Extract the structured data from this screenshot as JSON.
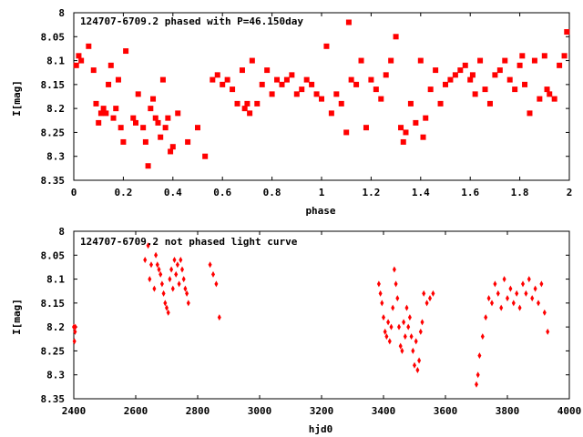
{
  "chart_data": [
    {
      "type": "scatter",
      "title": "124707-6709.2 phased with P=46.150day",
      "xlabel": "phase",
      "ylabel": "I[mag]",
      "xlim": [
        0,
        2
      ],
      "ylim": [
        8.35,
        8
      ],
      "y_inverted": true,
      "xticks": [
        "0",
        "0.2",
        "0.4",
        "0.6",
        "0.8",
        "1",
        "1.2",
        "1.4",
        "1.6",
        "1.8",
        "2"
      ],
      "yticks": [
        "8",
        "8.05",
        "8.1",
        "8.15",
        "8.2",
        "8.25",
        "8.3",
        "8.35"
      ],
      "marker": "filled-square",
      "color": "#ff0000",
      "series": [
        {
          "x": [
            0.01,
            0.02,
            0.03,
            0.06,
            0.08,
            0.09,
            0.1,
            0.11,
            0.12,
            0.13,
            0.14,
            0.15,
            0.16,
            0.17,
            0.18,
            0.19,
            0.2,
            0.21,
            0.24,
            0.25,
            0.26,
            0.28,
            0.29,
            0.3,
            0.31,
            0.32,
            0.33,
            0.34,
            0.35,
            0.36,
            0.37,
            0.38,
            0.39,
            0.4,
            0.42,
            0.46,
            0.5,
            0.53,
            0.56,
            0.58,
            0.6,
            0.62,
            0.64,
            0.66,
            0.68,
            0.69,
            0.7,
            0.71,
            0.72,
            0.74,
            0.76,
            0.78,
            0.8,
            0.82,
            0.84,
            0.86,
            0.88,
            0.9,
            0.92,
            0.94,
            0.96,
            0.98,
            1.0,
            1.02,
            1.04,
            1.06,
            1.08,
            1.1,
            1.11,
            1.12,
            1.14,
            1.16,
            1.18,
            1.2,
            1.22,
            1.24,
            1.26,
            1.28,
            1.3,
            1.32,
            1.33,
            1.34,
            1.36,
            1.38,
            1.4,
            1.41,
            1.42,
            1.44,
            1.46,
            1.48,
            1.5,
            1.52,
            1.54,
            1.56,
            1.58,
            1.6,
            1.61,
            1.62,
            1.64,
            1.66,
            1.68,
            1.7,
            1.72,
            1.74,
            1.76,
            1.78,
            1.8,
            1.81,
            1.82,
            1.84,
            1.86,
            1.88,
            1.9,
            1.91,
            1.92,
            1.94,
            1.96,
            1.98,
            1.99
          ],
          "y": [
            8.11,
            8.09,
            8.1,
            8.07,
            8.12,
            8.19,
            8.23,
            8.21,
            8.2,
            8.21,
            8.15,
            8.11,
            8.22,
            8.2,
            8.14,
            8.24,
            8.27,
            8.08,
            8.22,
            8.23,
            8.17,
            8.24,
            8.27,
            8.32,
            8.2,
            8.18,
            8.22,
            8.23,
            8.26,
            8.14,
            8.24,
            8.22,
            8.29,
            8.28,
            8.21,
            8.27,
            8.24,
            8.3,
            8.14,
            8.13,
            8.15,
            8.14,
            8.16,
            8.19,
            8.12,
            8.2,
            8.19,
            8.21,
            8.1,
            8.19,
            8.15,
            8.12,
            8.17,
            8.14,
            8.15,
            8.14,
            8.13,
            8.17,
            8.16,
            8.14,
            8.15,
            8.17,
            8.18,
            8.07,
            8.21,
            8.17,
            8.19,
            8.25,
            8.02,
            8.14,
            8.15,
            8.1,
            8.24,
            8.14,
            8.16,
            8.18,
            8.13,
            8.1,
            8.05,
            8.24,
            8.27,
            8.25,
            8.19,
            8.23,
            8.1,
            8.26,
            8.22,
            8.16,
            8.12,
            8.19,
            8.15,
            8.14,
            8.13,
            8.12,
            8.11,
            8.14,
            8.13,
            8.17,
            8.1,
            8.16,
            8.19,
            8.13,
            8.12,
            8.1,
            8.14,
            8.16,
            8.11,
            8.09,
            8.15,
            8.21,
            8.1,
            8.18,
            8.09,
            8.16,
            8.17,
            8.18,
            8.11,
            8.09,
            8.04
          ],
          "y_mirror_note": ""
        }
      ]
    },
    {
      "type": "scatter",
      "title": "124707-6709.2 not phased light curve",
      "xlabel": "hjd0",
      "ylabel": "I[mag]",
      "xlim": [
        2400,
        4000
      ],
      "ylim": [
        8.35,
        8
      ],
      "y_inverted": true,
      "xticks": [
        "2400",
        "2600",
        "2800",
        "3000",
        "3200",
        "3400",
        "3600",
        "3800",
        "4000"
      ],
      "yticks": [
        "8",
        "8.05",
        "8.1",
        "8.15",
        "8.2",
        "8.25",
        "8.3",
        "8.35"
      ],
      "marker": "filled-diamond",
      "color": "#ff0000",
      "series": [
        {
          "x": [
            2400,
            2402,
            2404,
            2405,
            2630,
            2640,
            2645,
            2650,
            2660,
            2665,
            2670,
            2675,
            2680,
            2685,
            2690,
            2695,
            2700,
            2705,
            2710,
            2715,
            2720,
            2725,
            2730,
            2735,
            2740,
            2745,
            2750,
            2755,
            2760,
            2765,
            2770,
            2840,
            2850,
            2860,
            2870,
            3385,
            3390,
            3395,
            3400,
            3405,
            3410,
            3415,
            3420,
            3425,
            3430,
            3435,
            3440,
            3445,
            3450,
            3455,
            3460,
            3465,
            3470,
            3475,
            3480,
            3485,
            3490,
            3495,
            3500,
            3505,
            3510,
            3515,
            3520,
            3525,
            3530,
            3540,
            3550,
            3560,
            3700,
            3705,
            3710,
            3720,
            3730,
            3740,
            3750,
            3760,
            3770,
            3780,
            3790,
            3800,
            3810,
            3820,
            3830,
            3840,
            3850,
            3860,
            3870,
            3880,
            3890,
            3900,
            3910,
            3920,
            3930
          ],
          "y": [
            8.2,
            8.23,
            8.21,
            8.2,
            8.06,
            8.03,
            8.1,
            8.07,
            8.12,
            8.05,
            8.07,
            8.08,
            8.09,
            8.11,
            8.13,
            8.15,
            8.16,
            8.17,
            8.1,
            8.08,
            8.12,
            8.06,
            8.09,
            8.07,
            8.11,
            8.06,
            8.08,
            8.1,
            8.12,
            8.13,
            8.15,
            8.07,
            8.09,
            8.11,
            8.18,
            8.11,
            8.13,
            8.15,
            8.18,
            8.21,
            8.22,
            8.19,
            8.23,
            8.2,
            8.16,
            8.08,
            8.11,
            8.14,
            8.2,
            8.24,
            8.25,
            8.19,
            8.22,
            8.16,
            8.2,
            8.18,
            8.22,
            8.25,
            8.28,
            8.23,
            8.29,
            8.27,
            8.21,
            8.19,
            8.13,
            8.15,
            8.14,
            8.13,
            8.32,
            8.3,
            8.26,
            8.22,
            8.18,
            8.14,
            8.15,
            8.11,
            8.13,
            8.16,
            8.1,
            8.14,
            8.12,
            8.15,
            8.13,
            8.16,
            8.11,
            8.13,
            8.1,
            8.14,
            8.12,
            8.15,
            8.11,
            8.17,
            8.21
          ]
        }
      ]
    }
  ]
}
